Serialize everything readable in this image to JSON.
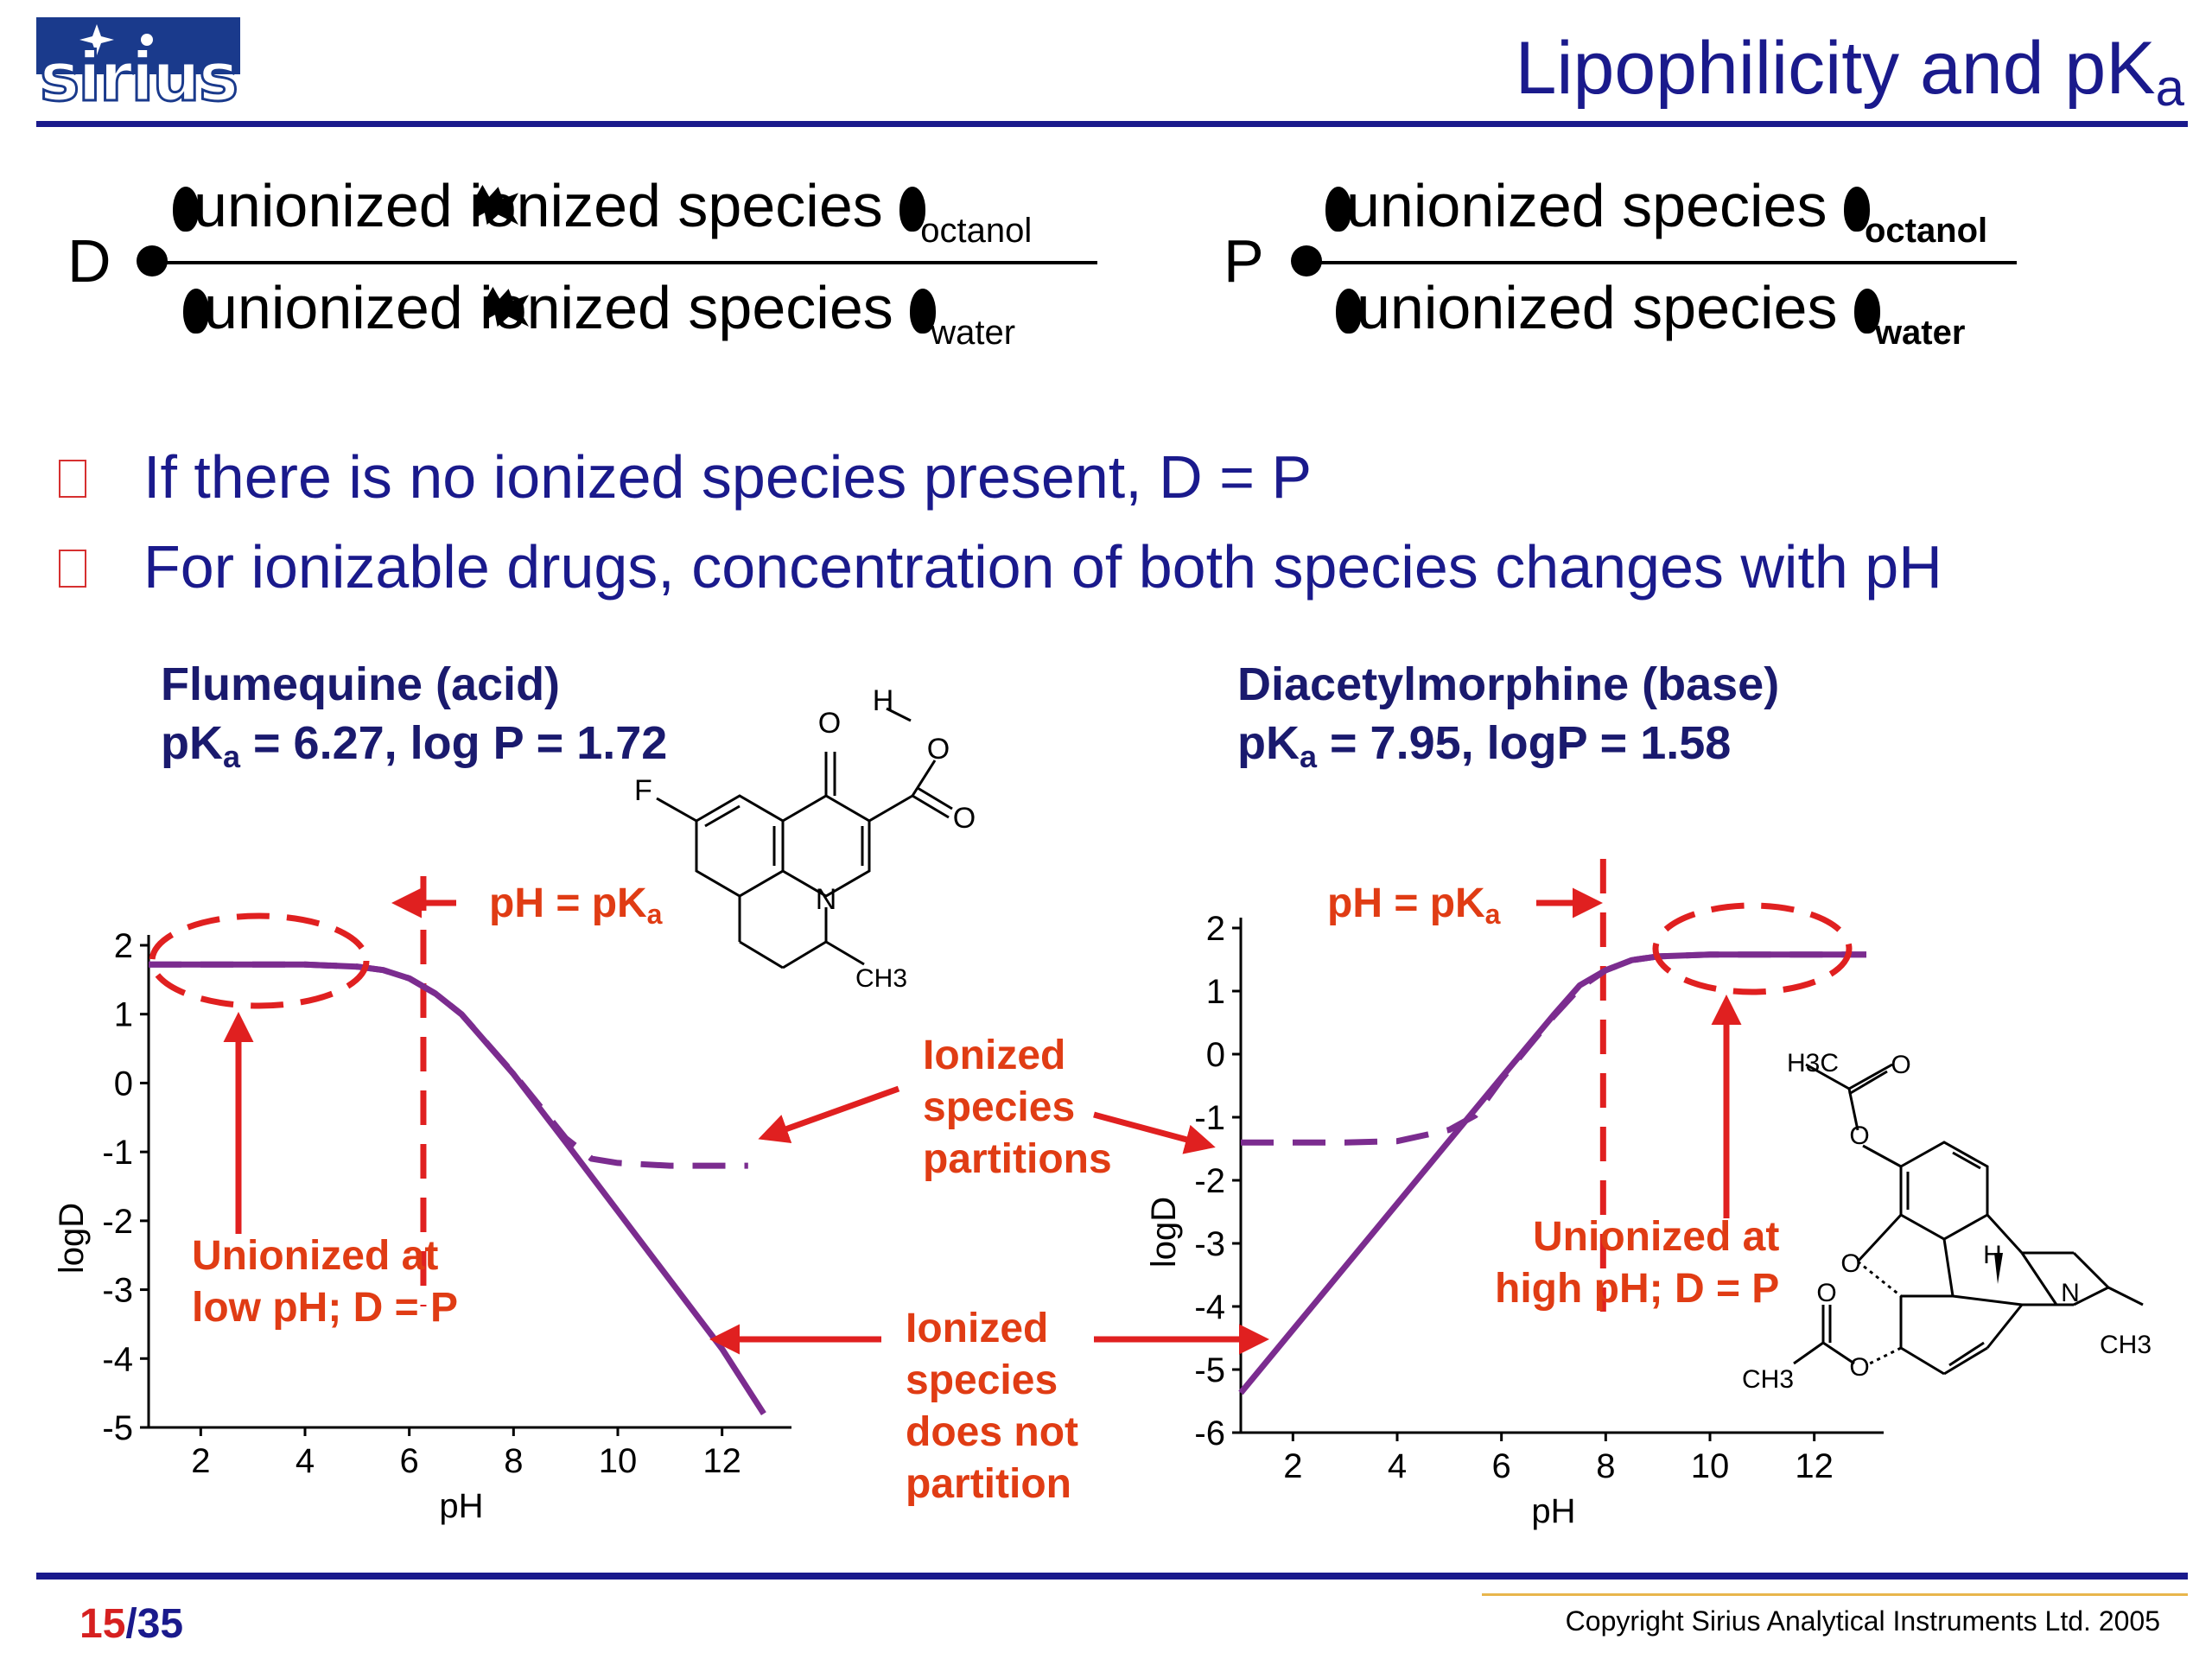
{
  "logo": {
    "text": "sirius"
  },
  "slide": {
    "title_main": "Lipophilicity and pK",
    "title_sub": "a",
    "page_current": "15",
    "page_total": "/35",
    "copyright": "Copyright Sirius Analytical Instruments Ltd. 2005"
  },
  "equations": {
    "d": {
      "lhs": "D",
      "numerator": "unionized ionized species",
      "numerator_sub": "octanol",
      "denominator": "unionized ionized species",
      "denominator_sub": "water"
    },
    "p": {
      "lhs": "P",
      "numerator": "unionized species",
      "numerator_sub": "octanol",
      "denominator": "unionized species",
      "denominator_sub": "water"
    }
  },
  "bullets": [
    "If there is no ionized species present, D = P",
    "For ionizable drugs, concentration of both species changes with pH"
  ],
  "drugs": {
    "left": {
      "name": "Flumequine (acid)",
      "props_pre": "pK",
      "props_sub": "a",
      "props_post": " = 6.27, log P = 1.72"
    },
    "right": {
      "name": "Diacetylmorphine (base)",
      "props_pre": "pK",
      "props_sub": "a",
      "props_post": " = 7.95, logP = 1.58"
    }
  },
  "structure_labels": {
    "flumequine": {
      "f": "F",
      "o1": "O",
      "o2": "O",
      "o3": "O",
      "h": "H",
      "n": "N",
      "ch3": "CH3"
    },
    "diacetylmorphine": {
      "h3c": "H3C",
      "o1": "O",
      "o2": "O",
      "o3": "O",
      "o4": "O",
      "o5": "O",
      "h": "H",
      "n": "N",
      "ch3a": "CH3",
      "ch3b": "CH3"
    }
  },
  "annotations": {
    "ph_pka_left_pre": "pH = pK",
    "ph_pka_left_sub": "a",
    "ph_pka_right_pre": "pH = pK",
    "ph_pka_right_sub": "a",
    "ionized_partitions": [
      "Ionized",
      "species",
      "partitions"
    ],
    "ionized_not_partition": [
      "Ionized",
      "species",
      "does not",
      "partition"
    ],
    "unionized_low": [
      "Unionized at",
      "low pH; D = P"
    ],
    "unionized_high": [
      "Unionized at",
      "high pH; D = P"
    ]
  },
  "colors": {
    "curve": "#7b2c8f",
    "annotation": "#e03c14",
    "navy": "#1a1a8c"
  },
  "chart_data": [
    {
      "type": "line",
      "title": "Flumequine (acid)",
      "xlabel": "pH",
      "ylabel": "logD",
      "xlim": [
        1,
        13
      ],
      "ylim": [
        -5,
        2
      ],
      "xticks": [
        2,
        4,
        6,
        8,
        10,
        12
      ],
      "yticks": [
        2,
        1,
        0,
        -1,
        -2,
        -3,
        -4,
        -5
      ],
      "pka": 6.27,
      "series": [
        {
          "style": "solid",
          "x": [
            1,
            2,
            3,
            4,
            5,
            5.5,
            6,
            6.5,
            7,
            8,
            9,
            10,
            11,
            12,
            12.8
          ],
          "y": [
            1.72,
            1.72,
            1.72,
            1.72,
            1.69,
            1.64,
            1.52,
            1.3,
            1.0,
            0.13,
            -0.86,
            -1.86,
            -2.86,
            -3.86,
            -4.8
          ]
        },
        {
          "style": "dashed",
          "x": [
            1,
            2,
            3,
            4,
            5,
            5.5,
            6,
            6.5,
            7,
            8,
            9,
            9.5,
            10,
            11,
            12.5
          ],
          "y": [
            1.72,
            1.72,
            1.72,
            1.72,
            1.69,
            1.64,
            1.52,
            1.3,
            1.0,
            0.14,
            -0.8,
            -1.1,
            -1.16,
            -1.2,
            -1.2
          ]
        }
      ]
    },
    {
      "type": "line",
      "title": "Diacetylmorphine (base)",
      "xlabel": "pH",
      "ylabel": "logD",
      "xlim": [
        1,
        13
      ],
      "ylim": [
        -6,
        2
      ],
      "xticks": [
        2,
        4,
        6,
        8,
        10,
        12
      ],
      "yticks": [
        2,
        1,
        0,
        -1,
        -2,
        -3,
        -4,
        -5,
        -6
      ],
      "pka": 7.95,
      "series": [
        {
          "style": "solid",
          "x": [
            1,
            2,
            3,
            4,
            5,
            6,
            7,
            7.5,
            8,
            8.5,
            9,
            10,
            11,
            12,
            13
          ],
          "y": [
            -5.37,
            -4.37,
            -3.37,
            -2.37,
            -1.37,
            -0.37,
            0.62,
            1.09,
            1.33,
            1.49,
            1.55,
            1.58,
            1.58,
            1.58,
            1.58
          ]
        },
        {
          "style": "dashed",
          "x": [
            1,
            2,
            3,
            4,
            5,
            5.5,
            6,
            6.5,
            7,
            7.5,
            8,
            8.5,
            9,
            10,
            11,
            12,
            13
          ],
          "y": [
            -1.4,
            -1.4,
            -1.4,
            -1.38,
            -1.2,
            -0.97,
            -0.4,
            0.1,
            0.6,
            1.05,
            1.33,
            1.49,
            1.55,
            1.58,
            1.58,
            1.58,
            1.58
          ]
        }
      ]
    }
  ]
}
